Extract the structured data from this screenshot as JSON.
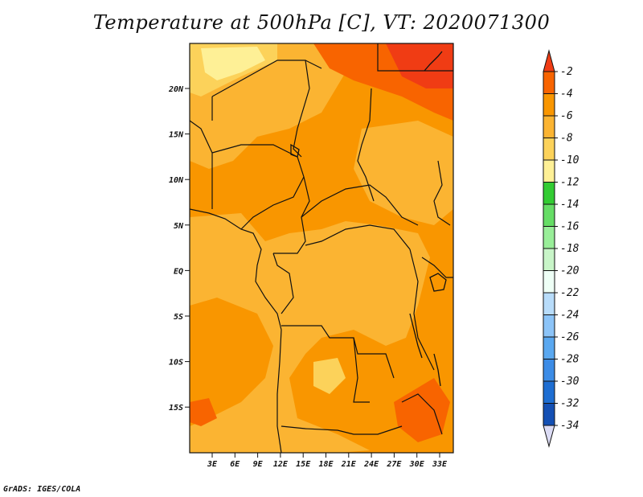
{
  "title": "Temperature at 500hPa [C], VT: 2020071300",
  "credit": "GrADS: IGES/COLA",
  "map": {
    "lat_labels": [
      "20N",
      "15N",
      "10N",
      "5N",
      "EQ",
      "5S",
      "10S",
      "15S"
    ],
    "lon_labels": [
      "3E",
      "6E",
      "9E",
      "12E",
      "15E",
      "18E",
      "21E",
      "24E",
      "27E",
      "30E",
      "33E"
    ]
  },
  "colorbar": {
    "labels": [
      "-2",
      "-4",
      "-6",
      "-8",
      "-10",
      "-12",
      "-14",
      "-16",
      "-18",
      "-20",
      "-22",
      "-24",
      "-26",
      "-28",
      "-30",
      "-32",
      "-34"
    ],
    "colors": {
      "top_arrow": "#f03c14",
      "c2": "#f86400",
      "c4": "#f99600",
      "c6": "#fbb432",
      "c8": "#fcd25a",
      "c10": "#fef096",
      "c12": "#33cc33",
      "c14": "#66dd66",
      "c16": "#99ee99",
      "c18": "#c8f5c8",
      "c20": "#eefff6",
      "c22": "#b8dcfa",
      "c24": "#8cc4f8",
      "c26": "#5aa8f0",
      "c28": "#3c8ce6",
      "c30": "#1e6ed2",
      "c32": "#1450b4",
      "c34": "#0a1464",
      "bottom_arrow": "#dcdcf5"
    }
  }
}
